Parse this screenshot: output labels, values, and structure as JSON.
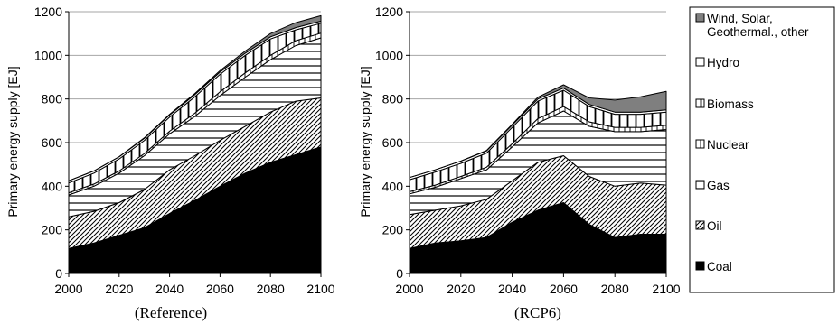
{
  "colors": {
    "coal": "#000000",
    "oil_pattern": "#000000",
    "gas_pattern": "#000000",
    "biomass_pattern": "#000000",
    "nuclear_pattern": "#000000",
    "hydro": "#ffffff",
    "renewables": "#7f7f7f",
    "grid": "#a6a6a6",
    "axis": "#000000"
  },
  "legend": {
    "items": [
      {
        "key": "renewables",
        "label_lines": [
          "Wind, Solar,",
          "Geothermal., other"
        ]
      },
      {
        "key": "hydro",
        "label_lines": [
          "Hydro"
        ]
      },
      {
        "key": "biomass",
        "label_lines": [
          "Biomass"
        ]
      },
      {
        "key": "nuclear",
        "label_lines": [
          "Nuclear"
        ]
      },
      {
        "key": "gas",
        "label_lines": [
          "Gas"
        ]
      },
      {
        "key": "oil",
        "label_lines": [
          "Oil"
        ]
      },
      {
        "key": "coal",
        "label_lines": [
          "Coal"
        ]
      }
    ]
  },
  "chart_data": [
    {
      "type": "area",
      "stacked": true,
      "caption": "(Reference)",
      "ylabel": "Primary energy supply [EJ]",
      "xlabel": "",
      "ylim": [
        0,
        1200
      ],
      "yticks": [
        0,
        200,
        400,
        600,
        800,
        1000,
        1200
      ],
      "xlim": [
        2000,
        2100
      ],
      "xticks": [
        2000,
        2020,
        2040,
        2060,
        2080,
        2100
      ],
      "grid": true,
      "x": [
        2000,
        2010,
        2020,
        2030,
        2040,
        2050,
        2060,
        2070,
        2080,
        2090,
        2100
      ],
      "series": [
        {
          "name": "Coal",
          "key": "coal",
          "values": [
            115,
            140,
            175,
            210,
            275,
            335,
            400,
            460,
            510,
            545,
            580
          ]
        },
        {
          "name": "Oil",
          "key": "oil",
          "values": [
            145,
            145,
            150,
            175,
            200,
            205,
            210,
            215,
            230,
            245,
            225
          ]
        },
        {
          "name": "Gas",
          "key": "gas",
          "values": [
            100,
            115,
            135,
            155,
            165,
            180,
            205,
            225,
            240,
            255,
            275
          ]
        },
        {
          "name": "Nuclear",
          "key": "nuclear",
          "values": [
            10,
            10,
            10,
            10,
            12,
            15,
            18,
            20,
            20,
            22,
            22
          ]
        },
        {
          "name": "Biomass",
          "key": "biomass",
          "values": [
            45,
            50,
            55,
            60,
            65,
            75,
            80,
            80,
            75,
            50,
            45
          ]
        },
        {
          "name": "Hydro",
          "key": "hydro",
          "values": [
            10,
            10,
            10,
            10,
            10,
            10,
            10,
            10,
            10,
            10,
            10
          ]
        },
        {
          "name": "Wind, Solar, Geothermal., other",
          "key": "renewables",
          "values": [
            0,
            0,
            0,
            2,
            3,
            5,
            7,
            10,
            15,
            23,
            25
          ]
        }
      ]
    },
    {
      "type": "area",
      "stacked": true,
      "caption": "(RCP6)",
      "ylabel": "Primary energy supply [EJ]",
      "xlabel": "",
      "ylim": [
        0,
        1200
      ],
      "yticks": [
        0,
        200,
        400,
        600,
        800,
        1000,
        1200
      ],
      "xlim": [
        2000,
        2100
      ],
      "xticks": [
        2000,
        2020,
        2040,
        2060,
        2080,
        2100
      ],
      "grid": true,
      "x": [
        2000,
        2010,
        2020,
        2030,
        2040,
        2050,
        2060,
        2070,
        2080,
        2090,
        2100
      ],
      "series": [
        {
          "name": "Coal",
          "key": "coal",
          "values": [
            115,
            140,
            150,
            165,
            235,
            290,
            325,
            225,
            165,
            180,
            180
          ]
        },
        {
          "name": "Oil",
          "key": "oil",
          "values": [
            155,
            150,
            160,
            175,
            190,
            220,
            215,
            220,
            235,
            235,
            225
          ]
        },
        {
          "name": "Gas",
          "key": "gas",
          "values": [
            95,
            105,
            125,
            135,
            155,
            180,
            205,
            230,
            250,
            235,
            255
          ]
        },
        {
          "name": "Nuclear",
          "key": "nuclear",
          "values": [
            10,
            10,
            10,
            12,
            15,
            20,
            20,
            20,
            20,
            20,
            20
          ]
        },
        {
          "name": "Biomass",
          "key": "biomass",
          "values": [
            55,
            60,
            60,
            65,
            75,
            80,
            75,
            70,
            60,
            60,
            60
          ]
        },
        {
          "name": "Hydro",
          "key": "hydro",
          "values": [
            10,
            10,
            10,
            10,
            10,
            10,
            10,
            10,
            10,
            10,
            10
          ]
        },
        {
          "name": "Wind, Solar, Geothermal., other",
          "key": "renewables",
          "values": [
            0,
            0,
            0,
            2,
            4,
            8,
            15,
            30,
            55,
            70,
            85
          ]
        }
      ]
    }
  ]
}
